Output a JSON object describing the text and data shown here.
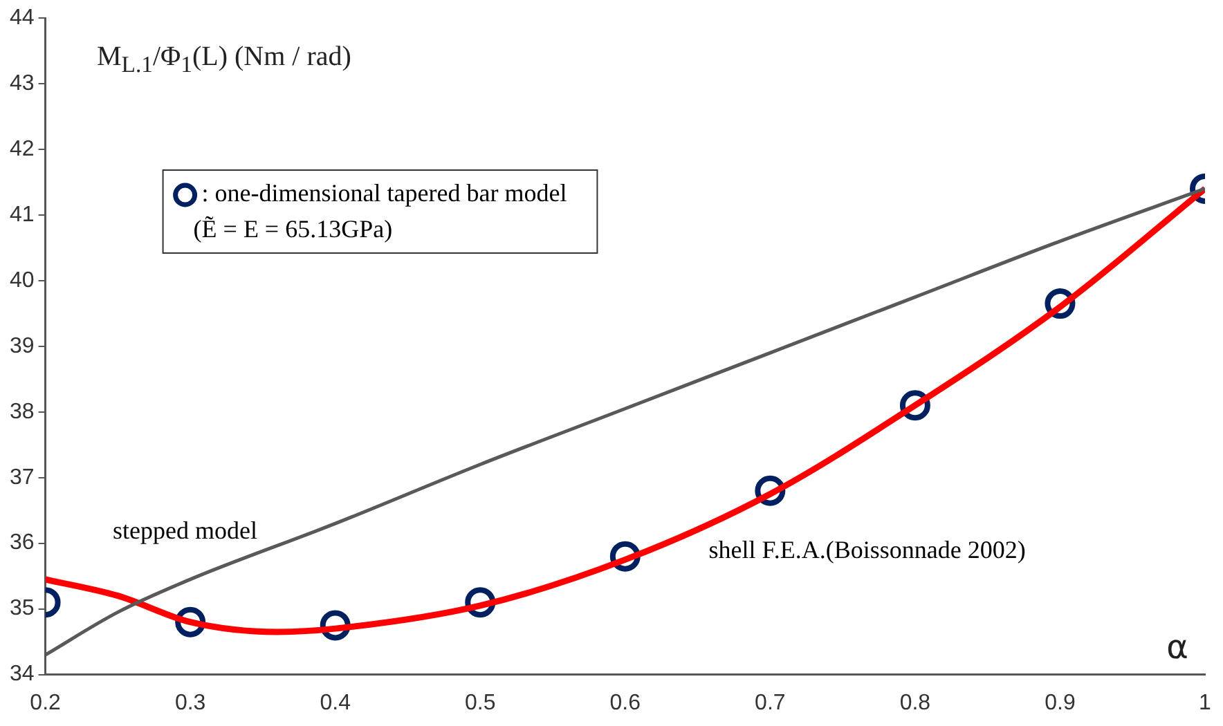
{
  "chart_data": {
    "type": "line",
    "xlabel": "α",
    "ylabel": "M$_{L.1}$/Φ$_{1}$(L) (Nm / rad)",
    "xlim": [
      0.2,
      1
    ],
    "xticks": [
      0.2,
      0.3,
      0.4,
      0.5,
      0.6,
      0.7,
      0.8,
      0.9,
      1
    ],
    "ylim": [
      34,
      44
    ],
    "yticks": [
      34,
      35,
      36,
      37,
      38,
      39,
      40,
      41,
      42,
      43,
      44
    ],
    "grid": false,
    "legend": "top left",
    "annotations": [
      "(Ẽ = E = 65.13GPa)"
    ],
    "series": [
      {
        "name": "stepped model",
        "color": "#595959",
        "x": [
          0.2,
          0.25,
          0.3,
          0.4,
          0.5,
          0.6,
          0.7,
          0.8,
          0.9,
          1
        ],
        "values": [
          34.3,
          34.95,
          35.45,
          36.3,
          37.2,
          38.05,
          38.9,
          39.75,
          40.6,
          41.4
        ]
      },
      {
        "name": "shell F.E.A.(Boissonnade 2002)",
        "color": "#ff0000",
        "x": [
          0.2,
          0.25,
          0.3,
          0.36,
          0.4,
          0.5,
          0.6,
          0.7,
          0.8,
          0.9,
          1
        ],
        "values": [
          35.45,
          35.2,
          34.8,
          34.65,
          34.7,
          35.05,
          35.75,
          36.75,
          38.1,
          39.6,
          41.4
        ]
      },
      {
        "name": ": one-dimensional tapered bar model",
        "type": "scatter",
        "marker": "circle",
        "color": "#002060",
        "x": [
          0.2,
          0.3,
          0.4,
          0.5,
          0.6,
          0.7,
          0.8,
          0.9,
          1
        ],
        "values": [
          35.1,
          34.8,
          34.75,
          35.1,
          35.8,
          36.8,
          38.1,
          39.65,
          41.4
        ]
      }
    ]
  }
}
